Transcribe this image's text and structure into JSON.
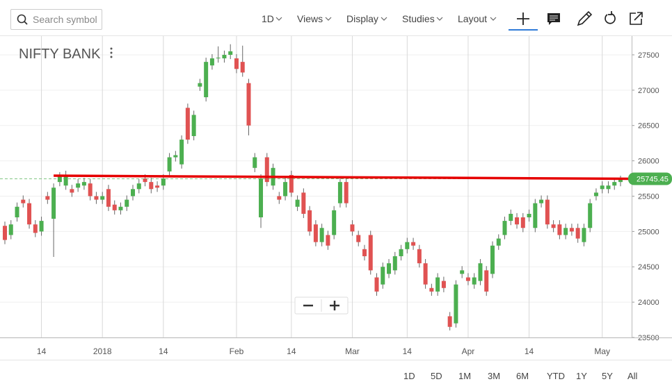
{
  "toolbar": {
    "search_placeholder": "Search symbol",
    "menus": [
      "1D",
      "Views",
      "Display",
      "Studies",
      "Layout"
    ]
  },
  "range_buttons": [
    "1D",
    "5D",
    "1M",
    "3M",
    "6M",
    "YTD",
    "1Y",
    "5Y",
    "All"
  ],
  "chart_data": {
    "type": "candlestick",
    "title": "NIFTY BANK",
    "categories": [
      null,
      null,
      null,
      null,
      null,
      null,
      "14",
      null,
      null,
      null,
      null,
      null,
      null,
      null,
      null,
      null,
      "2018",
      null,
      null,
      null,
      null,
      null,
      null,
      null,
      null,
      null,
      "14",
      null,
      null,
      null,
      null,
      null,
      null,
      null,
      null,
      null,
      null,
      null,
      "Feb",
      null,
      null,
      null,
      null,
      null,
      null,
      null,
      null,
      "14",
      null,
      null,
      null,
      null,
      null,
      null,
      null,
      null,
      null,
      "Mar",
      null,
      null,
      null,
      null,
      null,
      null,
      null,
      null,
      "14",
      null,
      null,
      null,
      null,
      null,
      null,
      null,
      null,
      null,
      "Apr",
      null,
      null,
      null,
      null,
      null,
      null,
      null,
      null,
      null,
      "14",
      null,
      null,
      null,
      null,
      null,
      null,
      null,
      null,
      null,
      null,
      null,
      "May",
      null,
      null,
      null
    ],
    "open": [
      25080,
      24950,
      25200,
      25450,
      25400,
      25100,
      25000,
      25500,
      25180,
      25700,
      25650,
      25600,
      25620,
      25650,
      25680,
      25500,
      25450,
      25600,
      25380,
      25300,
      25350,
      25500,
      25600,
      25750,
      25700,
      25650,
      25650,
      25850,
      26050,
      25950,
      26750,
      26350,
      27050,
      26900,
      27350,
      27450,
      27450,
      27500,
      27450,
      27400,
      27100,
      25900,
      25200,
      26050,
      25650,
      25500,
      25500,
      25800,
      25350,
      25550,
      25300,
      25100,
      24850,
      24950,
      24950,
      25400,
      25700,
      25100,
      24950,
      24750,
      24950,
      24350,
      24250,
      24400,
      24450,
      24650,
      24750,
      24850,
      24750,
      24550,
      24200,
      24150,
      24300,
      23800,
      23700,
      24400,
      24350,
      24250,
      24300,
      24450,
      24400,
      24800,
      24950,
      25150,
      25200,
      25200,
      25200,
      25050,
      25400,
      25450,
      25100,
      25100,
      24950,
      25050,
      25050,
      24850,
      25050,
      25500,
      25600,
      25600,
      25650,
      25700
    ],
    "high": [
      25140,
      25160,
      25410,
      25510,
      25460,
      25160,
      25210,
      25560,
      25680,
      25840,
      25860,
      25660,
      25740,
      25760,
      25740,
      25560,
      25560,
      25660,
      25440,
      25410,
      25510,
      25660,
      25740,
      25810,
      25760,
      25710,
      25810,
      26110,
      26140,
      26360,
      26810,
      26710,
      27160,
      27460,
      27510,
      27620,
      27560,
      27650,
      27510,
      27630,
      27160,
      26110,
      25810,
      26110,
      25960,
      25560,
      25760,
      25860,
      25510,
      25610,
      25360,
      25160,
      25110,
      25010,
      25360,
      25760,
      25760,
      25160,
      25010,
      24810,
      25010,
      24410,
      24560,
      24610,
      24710,
      24810,
      24910,
      24910,
      24810,
      24610,
      24260,
      24410,
      24360,
      23860,
      24310,
      24510,
      24410,
      24410,
      24610,
      24510,
      24860,
      24960,
      25210,
      25310,
      25260,
      25260,
      25310,
      25460,
      25510,
      25510,
      25160,
      25160,
      25110,
      25110,
      25110,
      25110,
      25460,
      25610,
      25710,
      25710,
      25760,
      25790
    ],
    "low": [
      24820,
      24890,
      25140,
      25340,
      25040,
      24920,
      24940,
      25390,
      24640,
      25640,
      25590,
      25490,
      25560,
      25590,
      25440,
      25390,
      25390,
      25290,
      25240,
      25240,
      25290,
      25440,
      25540,
      25640,
      25540,
      25560,
      25590,
      25790,
      25990,
      25890,
      26240,
      26290,
      26990,
      26840,
      27290,
      27390,
      27390,
      27440,
      27240,
      27190,
      26360,
      25840,
      25050,
      25640,
      25590,
      25390,
      25440,
      25490,
      25290,
      25190,
      24940,
      24790,
      24790,
      24740,
      24890,
      25340,
      25340,
      24940,
      24790,
      24590,
      24390,
      24090,
      24190,
      24340,
      24390,
      24590,
      24690,
      24740,
      24490,
      24190,
      24090,
      24090,
      24140,
      23600,
      23640,
      24340,
      24240,
      24190,
      24240,
      24090,
      24340,
      24740,
      24890,
      25090,
      25040,
      24990,
      25140,
      24990,
      25340,
      25040,
      24990,
      24890,
      24890,
      24940,
      24840,
      24790,
      24990,
      25440,
      25540,
      25540,
      25590,
      25640
    ],
    "close": [
      24880,
      25100,
      25350,
      25400,
      25100,
      24980,
      25150,
      25450,
      25620,
      25780,
      25800,
      25550,
      25680,
      25700,
      25500,
      25450,
      25500,
      25350,
      25300,
      25350,
      25450,
      25600,
      25680,
      25700,
      25600,
      25620,
      25750,
      26050,
      26080,
      26300,
      26300,
      26650,
      27100,
      27400,
      27450,
      27460,
      27500,
      27550,
      27300,
      27250,
      26500,
      26050,
      25750,
      25700,
      25900,
      25450,
      25700,
      25550,
      25450,
      25250,
      25000,
      24850,
      25050,
      24800,
      25300,
      25700,
      25400,
      25000,
      24850,
      24650,
      24450,
      24150,
      24500,
      24550,
      24650,
      24750,
      24850,
      24800,
      24550,
      24250,
      24150,
      24350,
      24200,
      23650,
      24250,
      24450,
      24300,
      24350,
      24550,
      24150,
      24800,
      24900,
      25150,
      25250,
      25100,
      25050,
      25250,
      25400,
      25450,
      25100,
      25050,
      24950,
      25050,
      25000,
      24900,
      25050,
      25400,
      25550,
      25650,
      25650,
      25700,
      25745.45
    ],
    "up_color": "#4caf50",
    "down_color": "#e05252",
    "trendline": {
      "color": "#e60000",
      "values": [
        25790,
        25745
      ]
    },
    "ylim": [
      23500,
      27765
    ],
    "yticks": [
      23500,
      24000,
      24500,
      25000,
      25500,
      26000,
      26500,
      27000,
      27500
    ],
    "grid": true
  }
}
